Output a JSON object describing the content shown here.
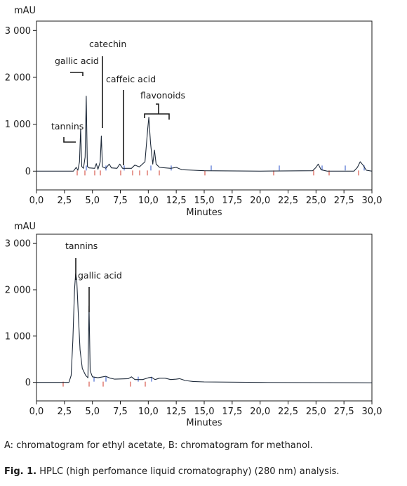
{
  "chart_data": [
    {
      "type": "line",
      "y_unit": "mAU",
      "xlabel": "Minutes",
      "xlim": [
        0,
        30
      ],
      "ylim": [
        -400,
        3200
      ],
      "x_ticks": [
        "0,0",
        "2,5",
        "5,0",
        "7,5",
        "10,0",
        "12,5",
        "15,0",
        "17,5",
        "20,0",
        "22,5",
        "25,0",
        "27,5",
        "30,0"
      ],
      "y_ticks": [
        "3 000",
        "2 000",
        "1 000",
        "0"
      ],
      "series": [
        {
          "points": [
            [
              0,
              0
            ],
            [
              3.3,
              0
            ],
            [
              3.55,
              80
            ],
            [
              3.7,
              20
            ],
            [
              3.85,
              200
            ],
            [
              3.95,
              900
            ],
            [
              4.05,
              100
            ],
            [
              4.2,
              60
            ],
            [
              4.35,
              300
            ],
            [
              4.45,
              1600
            ],
            [
              4.55,
              100
            ],
            [
              4.7,
              70
            ],
            [
              5.2,
              60
            ],
            [
              5.35,
              160
            ],
            [
              5.5,
              40
            ],
            [
              5.7,
              200
            ],
            [
              5.8,
              750
            ],
            [
              5.9,
              90
            ],
            [
              6.2,
              60
            ],
            [
              6.5,
              150
            ],
            [
              6.7,
              70
            ],
            [
              7.2,
              60
            ],
            [
              7.45,
              150
            ],
            [
              7.7,
              60
            ],
            [
              8.5,
              60
            ],
            [
              8.8,
              130
            ],
            [
              9.2,
              90
            ],
            [
              9.7,
              200
            ],
            [
              9.95,
              900
            ],
            [
              10.05,
              1150
            ],
            [
              10.2,
              600
            ],
            [
              10.4,
              150
            ],
            [
              10.55,
              450
            ],
            [
              10.7,
              150
            ],
            [
              11,
              80
            ],
            [
              12,
              60
            ],
            [
              12.5,
              80
            ],
            [
              13,
              30
            ],
            [
              14,
              20
            ],
            [
              15,
              10
            ],
            [
              20,
              0
            ],
            [
              24.7,
              10
            ],
            [
              25,
              80
            ],
            [
              25.2,
              150
            ],
            [
              25.45,
              30
            ],
            [
              26,
              0
            ],
            [
              28.4,
              0
            ],
            [
              28.7,
              80
            ],
            [
              28.95,
              200
            ],
            [
              29.2,
              130
            ],
            [
              29.5,
              20
            ],
            [
              30,
              0
            ]
          ]
        }
      ],
      "annotations": [
        "tannins",
        "gallic acid",
        "catechin",
        "caffeic acid",
        "flavonoids"
      ]
    },
    {
      "type": "line",
      "y_unit": "mAU",
      "xlabel": "Minutes",
      "xlim": [
        0,
        30
      ],
      "ylim": [
        -400,
        3200
      ],
      "x_ticks": [
        "0,0",
        "2,5",
        "5,0",
        "7,5",
        "10,0",
        "12,5",
        "15,0",
        "17,5",
        "20,0",
        "22,5",
        "25,0",
        "27,5",
        "30,0"
      ],
      "y_ticks": [
        "3 000",
        "2 000",
        "1 000",
        "0"
      ],
      "series": [
        {
          "points": [
            [
              0,
              0
            ],
            [
              2.9,
              0
            ],
            [
              3.1,
              150
            ],
            [
              3.25,
              900
            ],
            [
              3.4,
              2000
            ],
            [
              3.5,
              2350
            ],
            [
              3.6,
              2200
            ],
            [
              3.75,
              1400
            ],
            [
              3.9,
              700
            ],
            [
              4.1,
              300
            ],
            [
              4.4,
              150
            ],
            [
              4.6,
              100
            ],
            [
              4.7,
              1650
            ],
            [
              4.8,
              250
            ],
            [
              5,
              120
            ],
            [
              5.5,
              100
            ],
            [
              6.2,
              130
            ],
            [
              6.6,
              90
            ],
            [
              7,
              70
            ],
            [
              8.2,
              80
            ],
            [
              8.5,
              120
            ],
            [
              8.8,
              60
            ],
            [
              9.5,
              60
            ],
            [
              10,
              100
            ],
            [
              10.3,
              110
            ],
            [
              10.6,
              60
            ],
            [
              11,
              90
            ],
            [
              11.5,
              90
            ],
            [
              12,
              60
            ],
            [
              12.5,
              70
            ],
            [
              12.8,
              80
            ],
            [
              13.3,
              40
            ],
            [
              14,
              20
            ],
            [
              15,
              10
            ],
            [
              20,
              0
            ],
            [
              30,
              -10
            ]
          ]
        }
      ],
      "annotations": [
        "tannins",
        "gallic acid"
      ]
    }
  ],
  "captions": {
    "legend_line": "A: chromatogram for ethyl acetate, B: chromatogram for methanol.",
    "fig_label": "Fig. 1.",
    "fig_text": " HPLC (high perfomance liquid cromatography) (280 nm) analysis."
  }
}
